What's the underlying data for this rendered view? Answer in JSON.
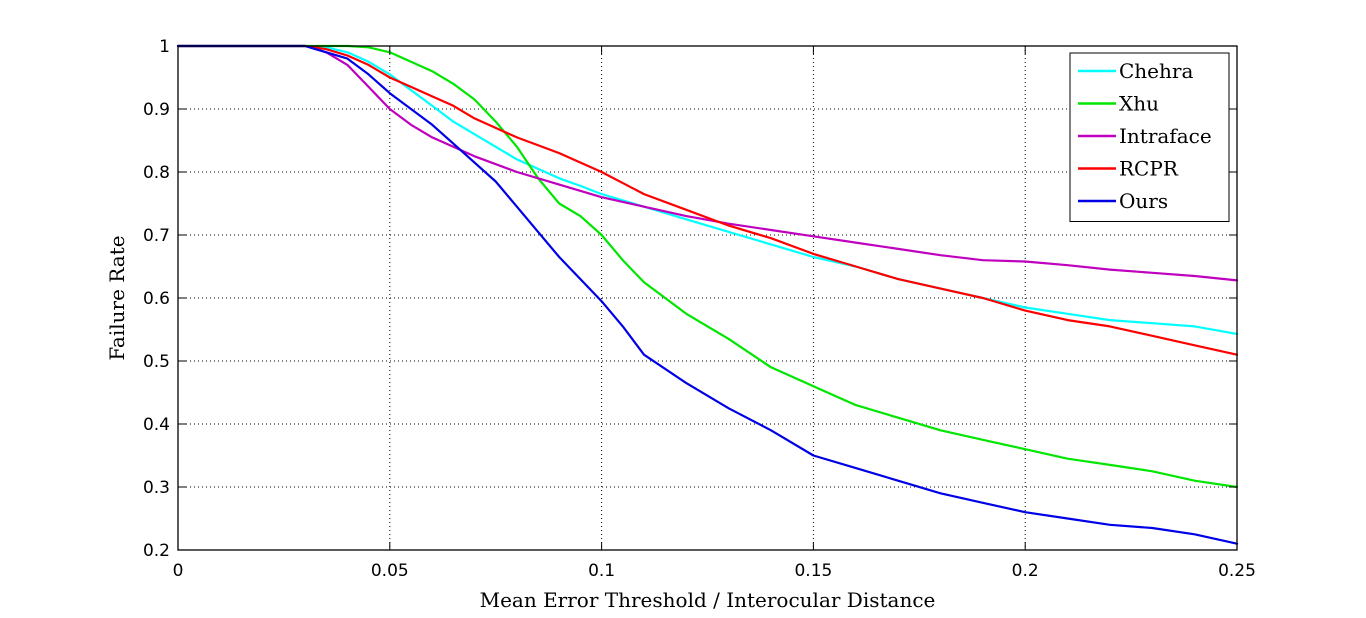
{
  "chart_data": {
    "type": "line",
    "xlabel": "Mean Error Threshold / Interocular Distance",
    "ylabel": "Failure Rate",
    "xlim": [
      0,
      0.25
    ],
    "ylim": [
      0.2,
      1
    ],
    "xticks": [
      0,
      0.05,
      0.1,
      0.15,
      0.2,
      0.25
    ],
    "xtick_labels": [
      "0",
      "0.05",
      "0.1",
      "0.15",
      "0.2",
      "0.25"
    ],
    "yticks": [
      0.2,
      0.3,
      0.4,
      0.5,
      0.6,
      0.7,
      0.8,
      0.9,
      1
    ],
    "ytick_labels": [
      "0.2",
      "0.3",
      "0.4",
      "0.5",
      "0.6",
      "0.7",
      "0.8",
      "0.9",
      "1"
    ],
    "grid": true,
    "legend_position": "top-right",
    "series": [
      {
        "name": "Chehra",
        "color": "#00ffff",
        "x": [
          0,
          0.03,
          0.035,
          0.04,
          0.045,
          0.05,
          0.055,
          0.06,
          0.065,
          0.07,
          0.075,
          0.08,
          0.085,
          0.09,
          0.095,
          0.1,
          0.11,
          0.12,
          0.13,
          0.14,
          0.15,
          0.16,
          0.17,
          0.18,
          0.19,
          0.2,
          0.21,
          0.22,
          0.23,
          0.24,
          0.25
        ],
        "y": [
          1,
          1,
          0.998,
          0.99,
          0.975,
          0.955,
          0.93,
          0.905,
          0.88,
          0.86,
          0.84,
          0.82,
          0.805,
          0.79,
          0.778,
          0.765,
          0.745,
          0.725,
          0.705,
          0.685,
          0.665,
          0.65,
          0.63,
          0.615,
          0.6,
          0.585,
          0.575,
          0.565,
          0.56,
          0.555,
          0.543
        ]
      },
      {
        "name": "Xhu",
        "color": "#00e600",
        "x": [
          0,
          0.03,
          0.04,
          0.045,
          0.05,
          0.055,
          0.06,
          0.065,
          0.07,
          0.075,
          0.08,
          0.085,
          0.09,
          0.095,
          0.1,
          0.105,
          0.11,
          0.12,
          0.13,
          0.14,
          0.15,
          0.16,
          0.17,
          0.18,
          0.19,
          0.2,
          0.21,
          0.22,
          0.23,
          0.24,
          0.25
        ],
        "y": [
          1,
          1,
          1,
          0.998,
          0.99,
          0.975,
          0.96,
          0.94,
          0.915,
          0.88,
          0.84,
          0.79,
          0.75,
          0.73,
          0.7,
          0.66,
          0.625,
          0.575,
          0.535,
          0.49,
          0.46,
          0.43,
          0.41,
          0.39,
          0.375,
          0.36,
          0.345,
          0.335,
          0.325,
          0.31,
          0.3
        ]
      },
      {
        "name": "Intraface",
        "color": "#bf00bf",
        "x": [
          0,
          0.03,
          0.035,
          0.04,
          0.045,
          0.05,
          0.055,
          0.06,
          0.065,
          0.07,
          0.08,
          0.09,
          0.1,
          0.11,
          0.12,
          0.13,
          0.14,
          0.15,
          0.16,
          0.17,
          0.18,
          0.19,
          0.2,
          0.21,
          0.22,
          0.23,
          0.24,
          0.25
        ],
        "y": [
          1,
          1,
          0.99,
          0.97,
          0.935,
          0.9,
          0.875,
          0.855,
          0.84,
          0.825,
          0.8,
          0.78,
          0.76,
          0.745,
          0.73,
          0.718,
          0.708,
          0.698,
          0.688,
          0.678,
          0.668,
          0.66,
          0.658,
          0.652,
          0.645,
          0.64,
          0.635,
          0.628
        ]
      },
      {
        "name": "RCPR",
        "color": "#ff0000",
        "x": [
          0,
          0.03,
          0.035,
          0.04,
          0.045,
          0.05,
          0.055,
          0.06,
          0.065,
          0.07,
          0.08,
          0.09,
          0.1,
          0.11,
          0.12,
          0.13,
          0.14,
          0.15,
          0.16,
          0.17,
          0.18,
          0.19,
          0.2,
          0.21,
          0.22,
          0.23,
          0.24,
          0.25
        ],
        "y": [
          1,
          1,
          0.995,
          0.985,
          0.97,
          0.95,
          0.935,
          0.92,
          0.905,
          0.885,
          0.855,
          0.83,
          0.8,
          0.765,
          0.74,
          0.715,
          0.695,
          0.67,
          0.65,
          0.63,
          0.615,
          0.6,
          0.58,
          0.565,
          0.555,
          0.54,
          0.525,
          0.51
        ]
      },
      {
        "name": "Ours",
        "color": "#0000e6",
        "x": [
          0,
          0.03,
          0.035,
          0.04,
          0.045,
          0.05,
          0.055,
          0.06,
          0.065,
          0.07,
          0.075,
          0.08,
          0.085,
          0.09,
          0.095,
          0.1,
          0.105,
          0.11,
          0.12,
          0.13,
          0.14,
          0.15,
          0.16,
          0.17,
          0.18,
          0.19,
          0.2,
          0.21,
          0.22,
          0.23,
          0.24,
          0.25
        ],
        "y": [
          1,
          1,
          0.99,
          0.98,
          0.955,
          0.925,
          0.9,
          0.875,
          0.845,
          0.815,
          0.785,
          0.745,
          0.705,
          0.665,
          0.63,
          0.595,
          0.555,
          0.51,
          0.465,
          0.425,
          0.39,
          0.35,
          0.33,
          0.31,
          0.29,
          0.275,
          0.26,
          0.25,
          0.24,
          0.235,
          0.225,
          0.21
        ]
      }
    ]
  }
}
